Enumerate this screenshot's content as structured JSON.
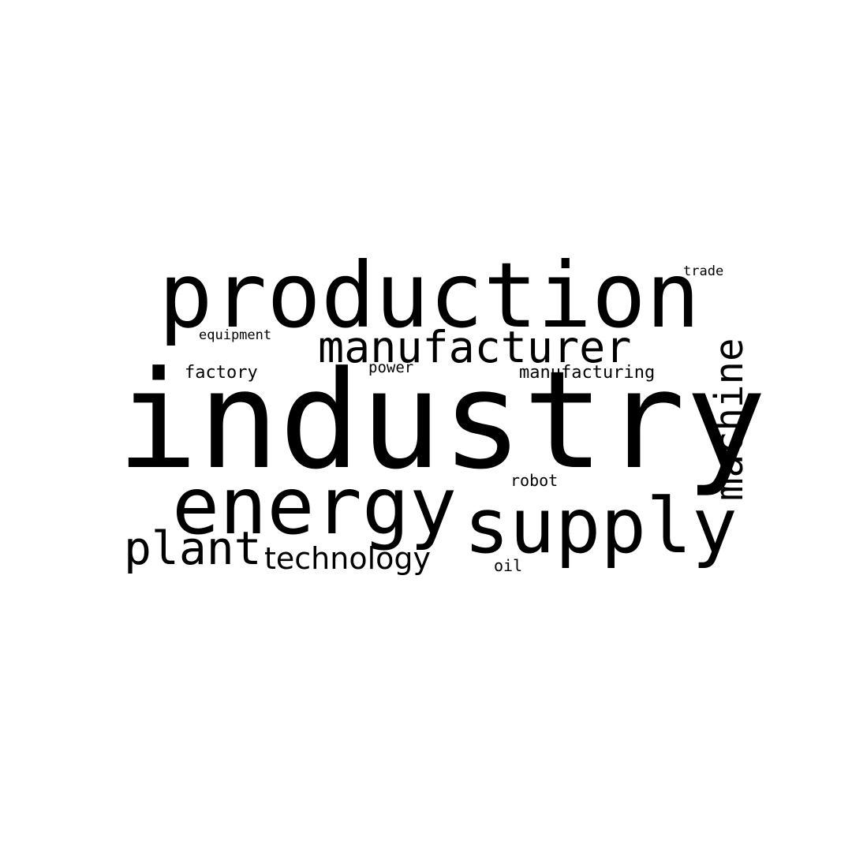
{
  "words": {
    "production": "production",
    "industry": "industry",
    "manufacturer": "manufacturer",
    "machine": "machine",
    "energy": "energy",
    "supply": "supply",
    "plant": "plant",
    "technology": "technology",
    "equipment": "equipment",
    "factory": "factory",
    "power": "power",
    "manufacturing": "manufacturing",
    "robot": "robot",
    "oil": "oil",
    "trade": "trade"
  },
  "colors": {
    "background": "#ffffff",
    "text": "#000000"
  }
}
